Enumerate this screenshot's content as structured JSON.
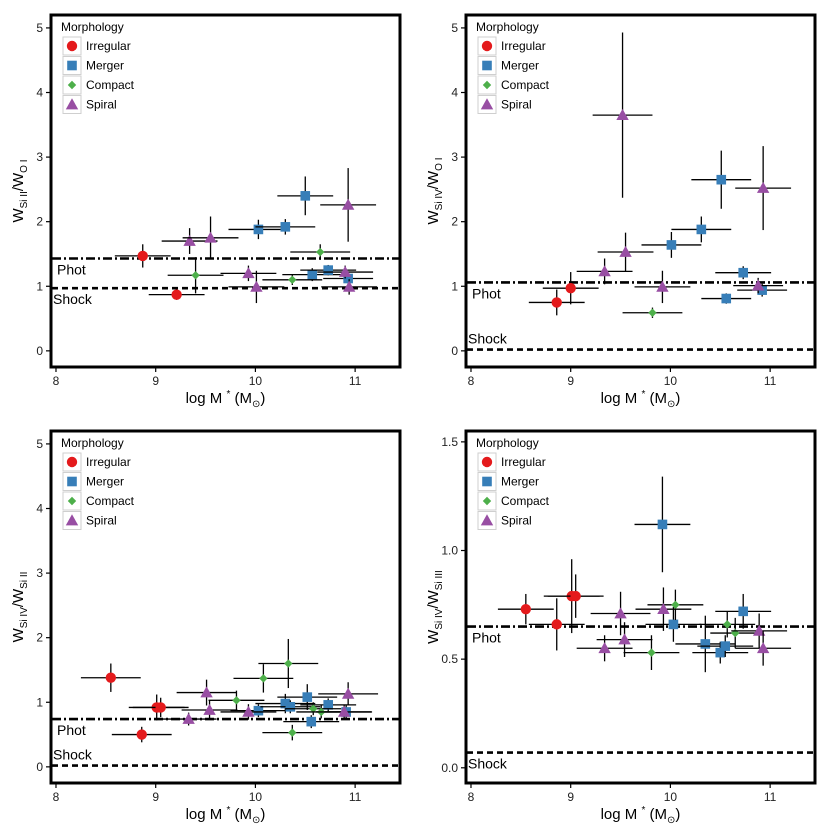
{
  "legend_title": "Morphology",
  "morph_order": [
    "irregular",
    "merger",
    "compact",
    "spiral"
  ],
  "morphologies": {
    "irregular": {
      "label": "Irregular",
      "color": "#e41a1c",
      "marker": "circle"
    },
    "merger": {
      "label": "Merger",
      "color": "#377eb8",
      "marker": "square"
    },
    "compact": {
      "label": "Compact",
      "color": "#4daf4a",
      "marker": "diamond"
    },
    "spiral": {
      "label": "Spiral",
      "color": "#984ea3",
      "marker": "triangle"
    }
  },
  "chart_data": [
    {
      "type": "scatter",
      "id": "si2-o1",
      "ylabel": {
        "base": "W",
        "num": "Si II",
        "den": "O I"
      },
      "xlabel": {
        "main": "log M",
        "sup": "*",
        "unit_open": "(M",
        "unit_sym": "⊙",
        "unit_close": ")"
      },
      "xlim": [
        7.95,
        11.45
      ],
      "ylim": [
        -0.25,
        5.2
      ],
      "xticks": [
        8,
        9,
        10,
        11
      ],
      "yticks": [
        0,
        1,
        2,
        3,
        4,
        5
      ],
      "xtick_labels": [
        "8",
        "9",
        "10",
        "11"
      ],
      "ytick_labels": [
        "0",
        "1",
        "2",
        "3",
        "4",
        "5"
      ],
      "phot": 1.43,
      "shock": 0.97,
      "phot_label": "Phot",
      "shock_label": "Shock",
      "points": [
        {
          "m": "irregular",
          "x": 8.87,
          "y": 1.47,
          "xerr": 0.28,
          "yerr": 0.18
        },
        {
          "m": "irregular",
          "x": 9.21,
          "y": 0.87,
          "xerr": 0.28,
          "yerr": 0.08
        },
        {
          "m": "merger",
          "x": 10.03,
          "y": 1.88,
          "xerr": 0.3,
          "yerr": 0.15
        },
        {
          "m": "merger",
          "x": 10.3,
          "y": 1.92,
          "xerr": 0.3,
          "yerr": 0.12
        },
        {
          "m": "merger",
          "x": 10.5,
          "y": 2.4,
          "xerr": 0.28,
          "yerr": 0.3
        },
        {
          "m": "merger",
          "x": 10.57,
          "y": 1.18,
          "xerr": 0.3,
          "yerr": 0.1
        },
        {
          "m": "merger",
          "x": 10.73,
          "y": 1.25,
          "xerr": 0.28,
          "yerr": 0.08
        },
        {
          "m": "merger",
          "x": 10.93,
          "y": 1.12,
          "xerr": 0.25,
          "yerr": 0.1
        },
        {
          "m": "compact",
          "x": 9.4,
          "y": 1.17,
          "xerr": 0.28,
          "yerr": 0.28
        },
        {
          "m": "compact",
          "x": 10.37,
          "y": 1.1,
          "xerr": 0.3,
          "yerr": 0.08
        },
        {
          "m": "compact",
          "x": 10.65,
          "y": 1.53,
          "xerr": 0.3,
          "yerr": 0.12
        },
        {
          "m": "spiral",
          "x": 9.34,
          "y": 1.7,
          "xerr": 0.28,
          "yerr": 0.2
        },
        {
          "m": "spiral",
          "x": 9.55,
          "y": 1.75,
          "xerr": 0.28,
          "yerr": 0.33
        },
        {
          "m": "spiral",
          "x": 9.93,
          "y": 1.2,
          "xerr": 0.28,
          "yerr": 0.12
        },
        {
          "m": "spiral",
          "x": 10.01,
          "y": 0.99,
          "xerr": 0.28,
          "yerr": 0.25
        },
        {
          "m": "spiral",
          "x": 10.9,
          "y": 1.22,
          "xerr": 0.28,
          "yerr": 0.1
        },
        {
          "m": "spiral",
          "x": 10.93,
          "y": 2.26,
          "xerr": 0.28,
          "yerr": 0.57
        },
        {
          "m": "spiral",
          "x": 10.94,
          "y": 0.99,
          "xerr": 0.28,
          "yerr": 0.12
        }
      ]
    },
    {
      "type": "scatter",
      "id": "si4-o1",
      "ylabel": {
        "base": "W",
        "num": "Si IV",
        "den": "O I"
      },
      "xlabel": {
        "main": "log M",
        "sup": "*",
        "unit_open": "(M",
        "unit_sym": "⊙",
        "unit_close": ")"
      },
      "xlim": [
        7.95,
        11.45
      ],
      "ylim": [
        -0.25,
        5.2
      ],
      "xticks": [
        8,
        9,
        10,
        11
      ],
      "yticks": [
        0,
        1,
        2,
        3,
        4,
        5
      ],
      "xtick_labels": [
        "8",
        "9",
        "10",
        "11"
      ],
      "ytick_labels": [
        "0",
        "1",
        "2",
        "3",
        "4",
        "5"
      ],
      "phot": 1.06,
      "shock": 0.02,
      "phot_label": "Phot",
      "shock_label": "Shock",
      "points": [
        {
          "m": "irregular",
          "x": 8.86,
          "y": 0.75,
          "xerr": 0.28,
          "yerr": 0.2
        },
        {
          "m": "irregular",
          "x": 9.0,
          "y": 0.97,
          "xerr": 0.28,
          "yerr": 0.25
        },
        {
          "m": "merger",
          "x": 10.01,
          "y": 1.64,
          "xerr": 0.3,
          "yerr": 0.2
        },
        {
          "m": "merger",
          "x": 10.31,
          "y": 1.88,
          "xerr": 0.3,
          "yerr": 0.2
        },
        {
          "m": "merger",
          "x": 10.51,
          "y": 2.65,
          "xerr": 0.3,
          "yerr": 0.45
        },
        {
          "m": "merger",
          "x": 10.56,
          "y": 0.81,
          "xerr": 0.25,
          "yerr": 0.08
        },
        {
          "m": "merger",
          "x": 10.73,
          "y": 1.21,
          "xerr": 0.28,
          "yerr": 0.1
        },
        {
          "m": "merger",
          "x": 10.92,
          "y": 0.94,
          "xerr": 0.25,
          "yerr": 0.1
        },
        {
          "m": "compact",
          "x": 9.82,
          "y": 0.59,
          "xerr": 0.3,
          "yerr": 0.08
        },
        {
          "m": "spiral",
          "x": 9.34,
          "y": 1.23,
          "xerr": 0.28,
          "yerr": 0.2
        },
        {
          "m": "spiral",
          "x": 9.52,
          "y": 3.65,
          "xerr": 0.3,
          "yerr": 1.28
        },
        {
          "m": "spiral",
          "x": 9.55,
          "y": 1.53,
          "xerr": 0.28,
          "yerr": 0.3
        },
        {
          "m": "spiral",
          "x": 9.92,
          "y": 0.99,
          "xerr": 0.28,
          "yerr": 0.25
        },
        {
          "m": "spiral",
          "x": 10.88,
          "y": 1.01,
          "xerr": 0.25,
          "yerr": 0.12
        },
        {
          "m": "spiral",
          "x": 10.93,
          "y": 2.52,
          "xerr": 0.28,
          "yerr": 0.65
        }
      ]
    },
    {
      "type": "scatter",
      "id": "si4-si2",
      "ylabel": {
        "base": "W",
        "num": "Si IV",
        "den": "Si II"
      },
      "xlabel": {
        "main": "log M",
        "sup": "*",
        "unit_open": "(M",
        "unit_sym": "⊙",
        "unit_close": ")"
      },
      "xlim": [
        7.95,
        11.45
      ],
      "ylim": [
        -0.25,
        5.2
      ],
      "xticks": [
        8,
        9,
        10,
        11
      ],
      "yticks": [
        0,
        1,
        2,
        3,
        4,
        5
      ],
      "xtick_labels": [
        "8",
        "9",
        "10",
        "11"
      ],
      "ytick_labels": [
        "0",
        "1",
        "2",
        "3",
        "4",
        "5"
      ],
      "phot": 0.74,
      "shock": 0.02,
      "phot_label": "Phot",
      "shock_label": "Shock",
      "points": [
        {
          "m": "irregular",
          "x": 8.55,
          "y": 1.38,
          "xerr": 0.3,
          "yerr": 0.22
        },
        {
          "m": "irregular",
          "x": 8.86,
          "y": 0.5,
          "xerr": 0.3,
          "yerr": 0.12
        },
        {
          "m": "irregular",
          "x": 9.01,
          "y": 0.92,
          "xerr": 0.28,
          "yerr": 0.2
        },
        {
          "m": "irregular",
          "x": 9.05,
          "y": 0.92,
          "xerr": 0.28,
          "yerr": 0.15
        },
        {
          "m": "merger",
          "x": 10.03,
          "y": 0.87,
          "xerr": 0.28,
          "yerr": 0.1
        },
        {
          "m": "merger",
          "x": 10.3,
          "y": 0.98,
          "xerr": 0.3,
          "yerr": 0.15
        },
        {
          "m": "merger",
          "x": 10.35,
          "y": 0.93,
          "xerr": 0.3,
          "yerr": 0.1
        },
        {
          "m": "merger",
          "x": 10.52,
          "y": 1.08,
          "xerr": 0.3,
          "yerr": 0.2
        },
        {
          "m": "merger",
          "x": 10.56,
          "y": 0.7,
          "xerr": 0.28,
          "yerr": 0.1
        },
        {
          "m": "merger",
          "x": 10.73,
          "y": 0.96,
          "xerr": 0.28,
          "yerr": 0.1
        },
        {
          "m": "merger",
          "x": 10.91,
          "y": 0.85,
          "xerr": 0.25,
          "yerr": 0.1
        },
        {
          "m": "compact",
          "x": 9.81,
          "y": 1.03,
          "xerr": 0.28,
          "yerr": 0.15
        },
        {
          "m": "compact",
          "x": 10.08,
          "y": 1.37,
          "xerr": 0.3,
          "yerr": 0.22
        },
        {
          "m": "compact",
          "x": 10.33,
          "y": 1.6,
          "xerr": 0.3,
          "yerr": 0.38
        },
        {
          "m": "compact",
          "x": 10.37,
          "y": 0.53,
          "xerr": 0.3,
          "yerr": 0.12
        },
        {
          "m": "compact",
          "x": 10.58,
          "y": 0.9,
          "xerr": 0.28,
          "yerr": 0.1
        },
        {
          "m": "compact",
          "x": 10.66,
          "y": 0.85,
          "xerr": 0.25,
          "yerr": 0.1
        },
        {
          "m": "spiral",
          "x": 9.33,
          "y": 0.74,
          "xerr": 0.28,
          "yerr": 0.1
        },
        {
          "m": "spiral",
          "x": 9.51,
          "y": 1.15,
          "xerr": 0.3,
          "yerr": 0.2
        },
        {
          "m": "spiral",
          "x": 9.54,
          "y": 0.88,
          "xerr": 0.28,
          "yerr": 0.15
        },
        {
          "m": "spiral",
          "x": 9.93,
          "y": 0.85,
          "xerr": 0.28,
          "yerr": 0.12
        },
        {
          "m": "spiral",
          "x": 10.89,
          "y": 0.85,
          "xerr": 0.28,
          "yerr": 0.1
        },
        {
          "m": "spiral",
          "x": 10.93,
          "y": 1.13,
          "xerr": 0.3,
          "yerr": 0.18
        }
      ]
    },
    {
      "type": "scatter",
      "id": "si4-si3",
      "ylabel": {
        "base": "W",
        "num": "Si IV",
        "den": "Si III"
      },
      "xlabel": {
        "main": "log M",
        "sup": "*",
        "unit_open": "(M",
        "unit_sym": "⊙",
        "unit_close": ")"
      },
      "xlim": [
        7.95,
        11.45
      ],
      "ylim": [
        -0.07,
        1.55
      ],
      "xticks": [
        8,
        9,
        10,
        11
      ],
      "yticks": [
        0.0,
        0.5,
        1.0,
        1.5
      ],
      "xtick_labels": [
        "8",
        "9",
        "10",
        "11"
      ],
      "ytick_labels": [
        "0.0",
        "0.5",
        "1.0",
        "1.5"
      ],
      "phot": 0.65,
      "shock": 0.07,
      "phot_label": "Phot",
      "shock_label": "Shock",
      "points": [
        {
          "m": "irregular",
          "x": 8.55,
          "y": 0.73,
          "xerr": 0.28,
          "yerr": 0.07
        },
        {
          "m": "irregular",
          "x": 8.86,
          "y": 0.66,
          "xerr": 0.28,
          "yerr": 0.12
        },
        {
          "m": "irregular",
          "x": 9.01,
          "y": 0.79,
          "xerr": 0.28,
          "yerr": 0.17
        },
        {
          "m": "irregular",
          "x": 9.05,
          "y": 0.79,
          "xerr": 0.28,
          "yerr": 0.1
        },
        {
          "m": "merger",
          "x": 9.92,
          "y": 1.12,
          "xerr": 0.28,
          "yerr": 0.22
        },
        {
          "m": "merger",
          "x": 10.03,
          "y": 0.66,
          "xerr": 0.28,
          "yerr": 0.08
        },
        {
          "m": "merger",
          "x": 10.35,
          "y": 0.57,
          "xerr": 0.3,
          "yerr": 0.13
        },
        {
          "m": "merger",
          "x": 10.5,
          "y": 0.53,
          "xerr": 0.28,
          "yerr": 0.05
        },
        {
          "m": "merger",
          "x": 10.55,
          "y": 0.56,
          "xerr": 0.28,
          "yerr": 0.05
        },
        {
          "m": "merger",
          "x": 10.73,
          "y": 0.72,
          "xerr": 0.28,
          "yerr": 0.08
        },
        {
          "m": "compact",
          "x": 9.81,
          "y": 0.53,
          "xerr": 0.28,
          "yerr": 0.08
        },
        {
          "m": "compact",
          "x": 10.05,
          "y": 0.75,
          "xerr": 0.28,
          "yerr": 0.07
        },
        {
          "m": "compact",
          "x": 10.57,
          "y": 0.66,
          "xerr": 0.28,
          "yerr": 0.06
        },
        {
          "m": "compact",
          "x": 10.65,
          "y": 0.62,
          "xerr": 0.25,
          "yerr": 0.07
        },
        {
          "m": "spiral",
          "x": 9.34,
          "y": 0.55,
          "xerr": 0.28,
          "yerr": 0.06
        },
        {
          "m": "spiral",
          "x": 9.5,
          "y": 0.71,
          "xerr": 0.3,
          "yerr": 0.1
        },
        {
          "m": "spiral",
          "x": 9.54,
          "y": 0.59,
          "xerr": 0.28,
          "yerr": 0.08
        },
        {
          "m": "spiral",
          "x": 9.93,
          "y": 0.73,
          "xerr": 0.28,
          "yerr": 0.1
        },
        {
          "m": "spiral",
          "x": 10.89,
          "y": 0.63,
          "xerr": 0.28,
          "yerr": 0.08
        },
        {
          "m": "spiral",
          "x": 10.93,
          "y": 0.55,
          "xerr": 0.28,
          "yerr": 0.08
        }
      ]
    }
  ]
}
